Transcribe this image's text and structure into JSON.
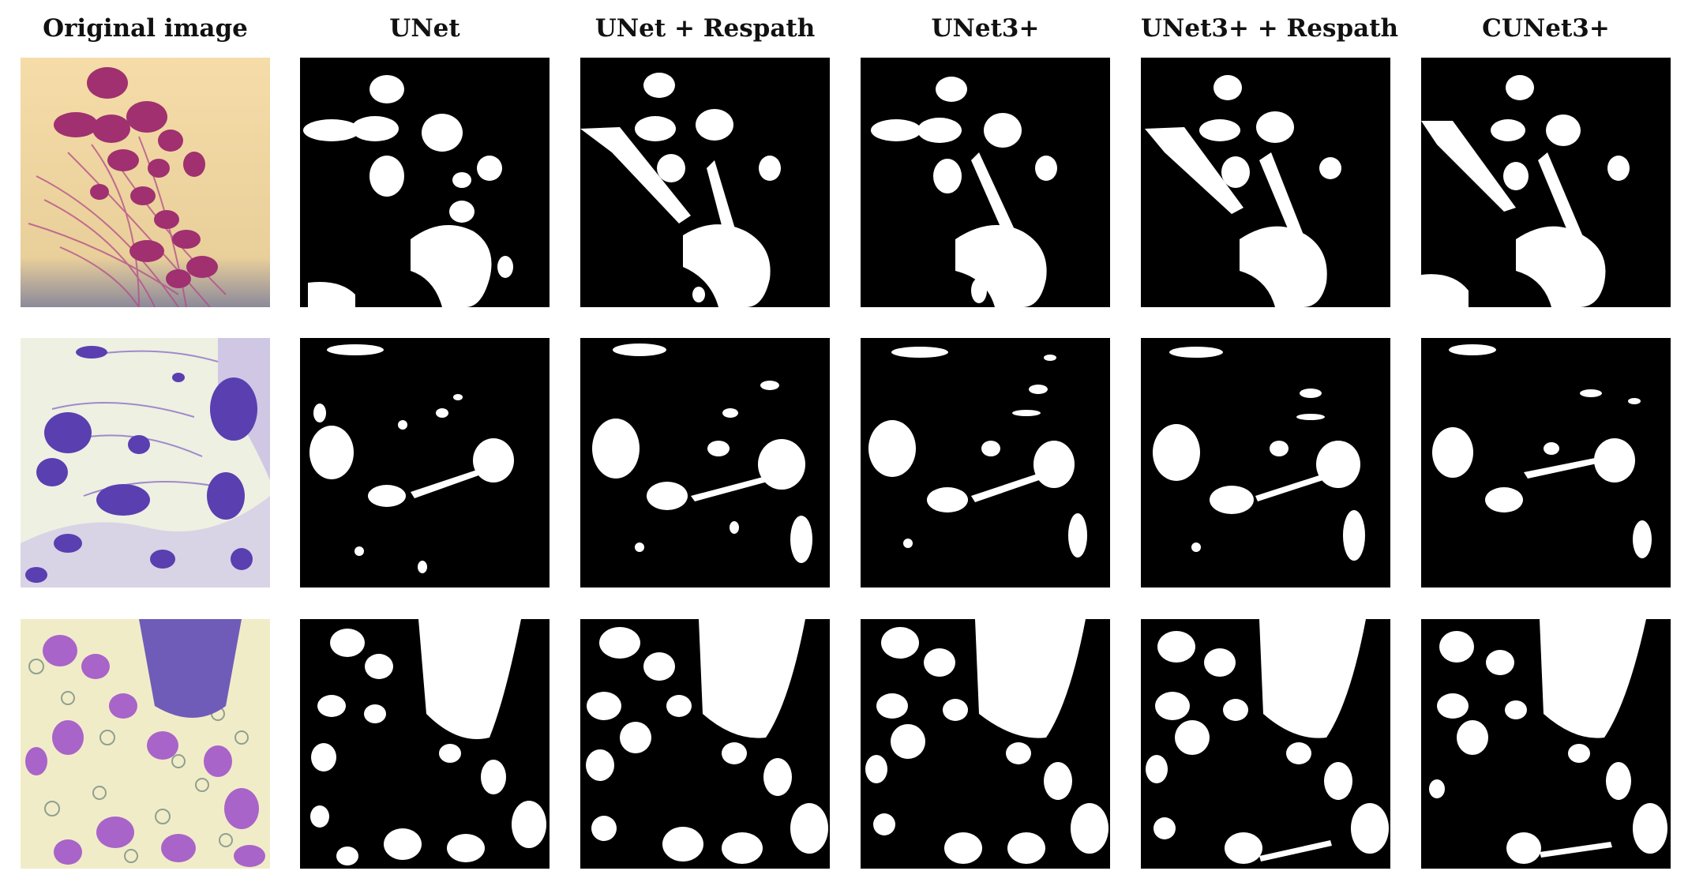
{
  "figure": {
    "columns": [
      {
        "label": "Original image"
      },
      {
        "label": "UNet"
      },
      {
        "label": "UNet + Respath"
      },
      {
        "label": "UNet3+"
      },
      {
        "label": "UNet3+ + Respath"
      },
      {
        "label": "CUNet3+"
      }
    ],
    "rows": 3,
    "mask_foreground": "#ffffff",
    "mask_background": "#000000",
    "sample_palettes": [
      {
        "background": "#f3d9a2",
        "cells": "#a0306f",
        "strands": "#b34a8a"
      },
      {
        "background": "#eef0e2",
        "cells": "#5a3fb0",
        "strands": "#8060c0"
      },
      {
        "background": "#f1ecc8",
        "cells": "#a864c8",
        "strands": "#8fa090"
      }
    ]
  }
}
